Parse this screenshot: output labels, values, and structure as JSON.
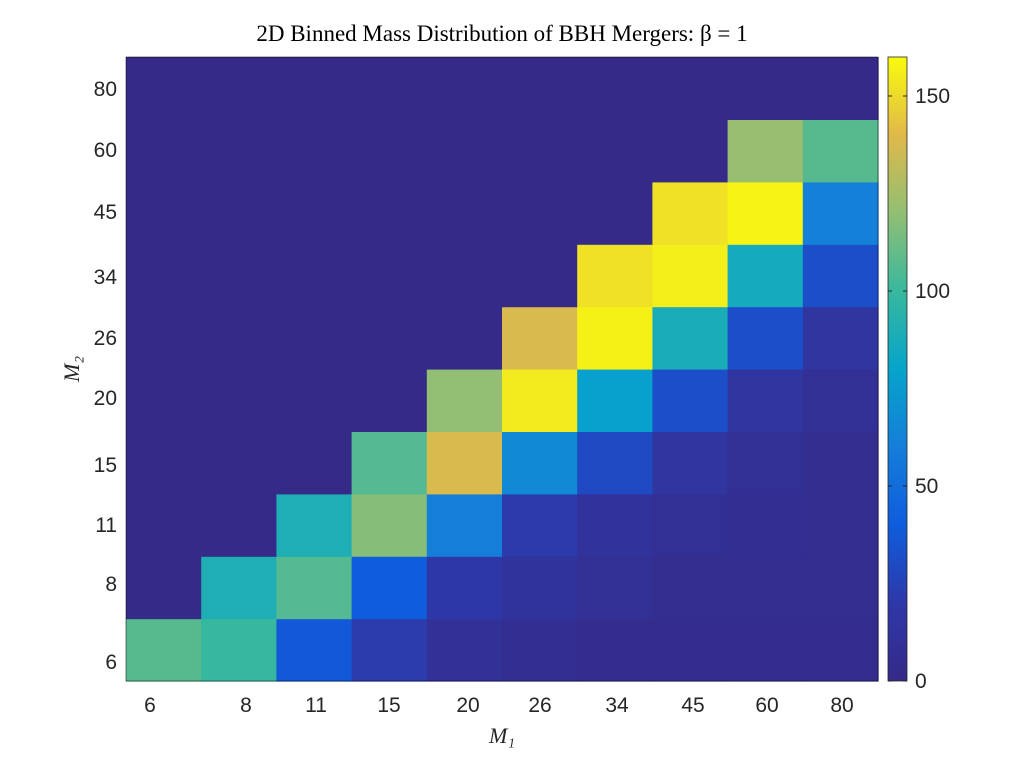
{
  "chart_data": {
    "type": "heatmap",
    "title": "2D Binned Mass Distribution of BBH Mergers: β = 1",
    "xlabel": "M₁",
    "ylabel": "M₂",
    "x_ticks": [
      "6",
      "8",
      "11",
      "15",
      "20",
      "26",
      "34",
      "45",
      "60",
      "80"
    ],
    "y_ticks": [
      "6",
      "8",
      "11",
      "15",
      "20",
      "26",
      "34",
      "45",
      "60",
      "80"
    ],
    "colorbar": {
      "min": 0,
      "max": 160,
      "ticks": [
        "0",
        "50",
        "100",
        "150"
      ],
      "colormap": "parula"
    },
    "values": [
      [
        107,
        99,
        38,
        22,
        10,
        6,
        4,
        4,
        4,
        4
      ],
      [
        0,
        90,
        106,
        40,
        19,
        13,
        8,
        5,
        5,
        5
      ],
      [
        0,
        0,
        90,
        117,
        60,
        21,
        12,
        8,
        6,
        5
      ],
      [
        0,
        0,
        0,
        106,
        138,
        66,
        30,
        15,
        8,
        5
      ],
      [
        0,
        0,
        0,
        0,
        120,
        155,
        78,
        32,
        15,
        8
      ],
      [
        0,
        0,
        0,
        0,
        0,
        138,
        157,
        88,
        32,
        15
      ],
      [
        0,
        0,
        0,
        0,
        0,
        0,
        152,
        156,
        86,
        32
      ],
      [
        0,
        0,
        0,
        0,
        0,
        0,
        0,
        152,
        158,
        61
      ],
      [
        0,
        0,
        0,
        0,
        0,
        0,
        0,
        0,
        122,
        107
      ],
      [
        0,
        0,
        0,
        0,
        0,
        0,
        0,
        0,
        0,
        0
      ]
    ]
  }
}
